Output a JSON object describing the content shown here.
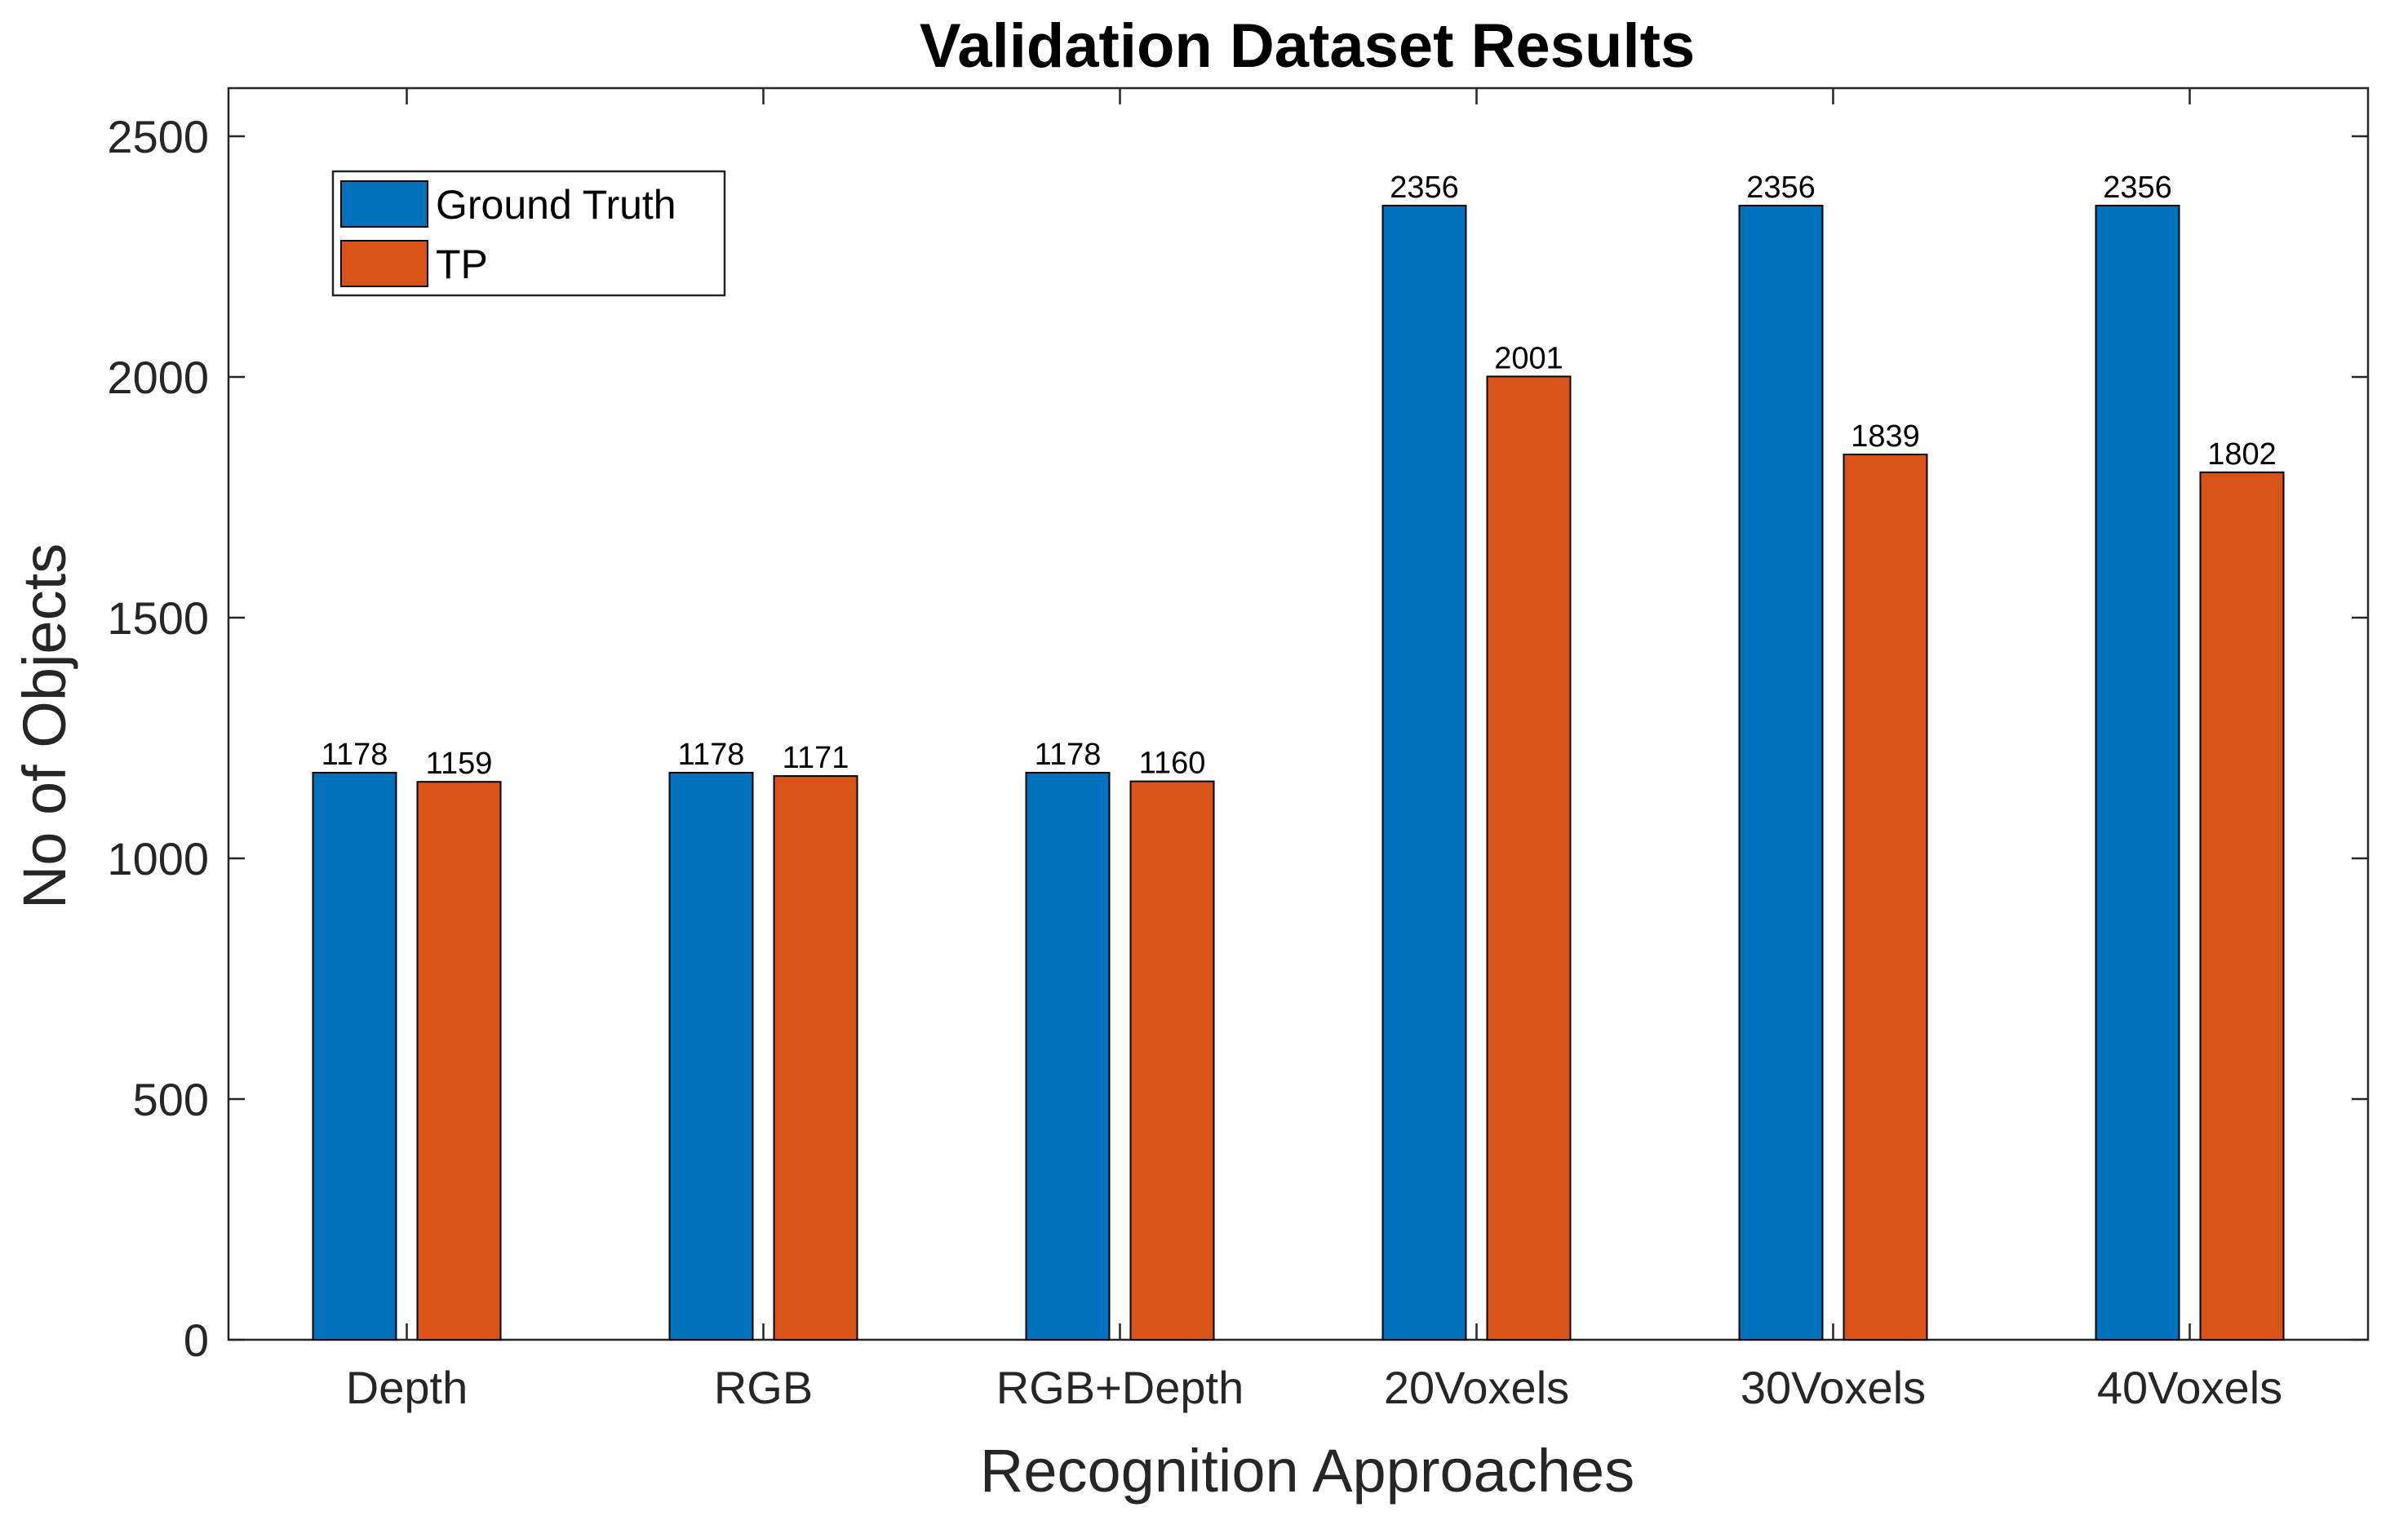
{
  "chart_data": {
    "type": "bar",
    "title": "Validation Dataset Results",
    "xlabel": "Recognition Approaches",
    "ylabel": "No of Objects",
    "categories": [
      "Depth",
      "RGB",
      "RGB+Depth",
      "20Voxels",
      "30Voxels",
      "40Voxels"
    ],
    "series": [
      {
        "name": "Ground Truth",
        "color": "#0072BD",
        "values": [
          1178,
          1178,
          1178,
          2356,
          2356,
          2356
        ]
      },
      {
        "name": "TP",
        "color": "#D95319",
        "values": [
          1159,
          1171,
          1160,
          2001,
          1839,
          1802
        ]
      }
    ],
    "ylim": [
      0,
      2600
    ],
    "yticks": [
      0,
      500,
      1000,
      1500,
      2000,
      2500
    ],
    "grid": false,
    "legend_position": "top-left"
  }
}
